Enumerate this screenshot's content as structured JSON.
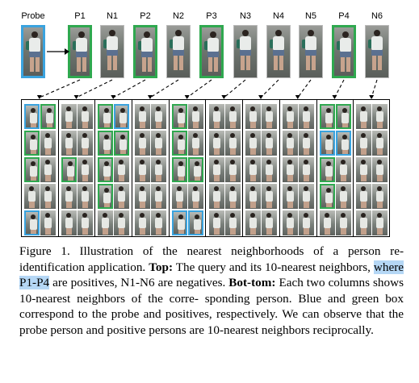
{
  "top": {
    "labels": [
      "Probe",
      "P1",
      "N1",
      "P2",
      "N2",
      "P3",
      "N3",
      "N4",
      "N5",
      "P4",
      "N6"
    ],
    "types": [
      "probe",
      "pos",
      "neg",
      "pos",
      "neg",
      "pos",
      "neg",
      "neg",
      "neg",
      "pos",
      "neg"
    ]
  },
  "colors": {
    "probe_box": "#3aa3de",
    "positive_box": "#2fa84f",
    "highlight": "#b5d7f5"
  },
  "caption": {
    "fig": "Figure 1.",
    "line1_rest": "Illustration of the nearest neighborhoods of a person",
    "line2_start": "re-identification application.",
    "top_label": "Top:",
    "line2_end": "The query and its 10-nearest",
    "line3_start": "neighbors,",
    "line3_highlight": "where P1-P4",
    "line3_end": "are positives, N1-N6 are negatives.",
    "bottom_label": "Bot-",
    "bottom_label2": "tom:",
    "line4_rest": "Each two columns shows 10-nearest neighbors of the corre-",
    "line5": "sponding person. Blue and green box correspond to the probe and",
    "line6": "positives, respectively. We can observe that the probe person and",
    "line7": "positive persons are 10-nearest neighbors reciprocally."
  }
}
